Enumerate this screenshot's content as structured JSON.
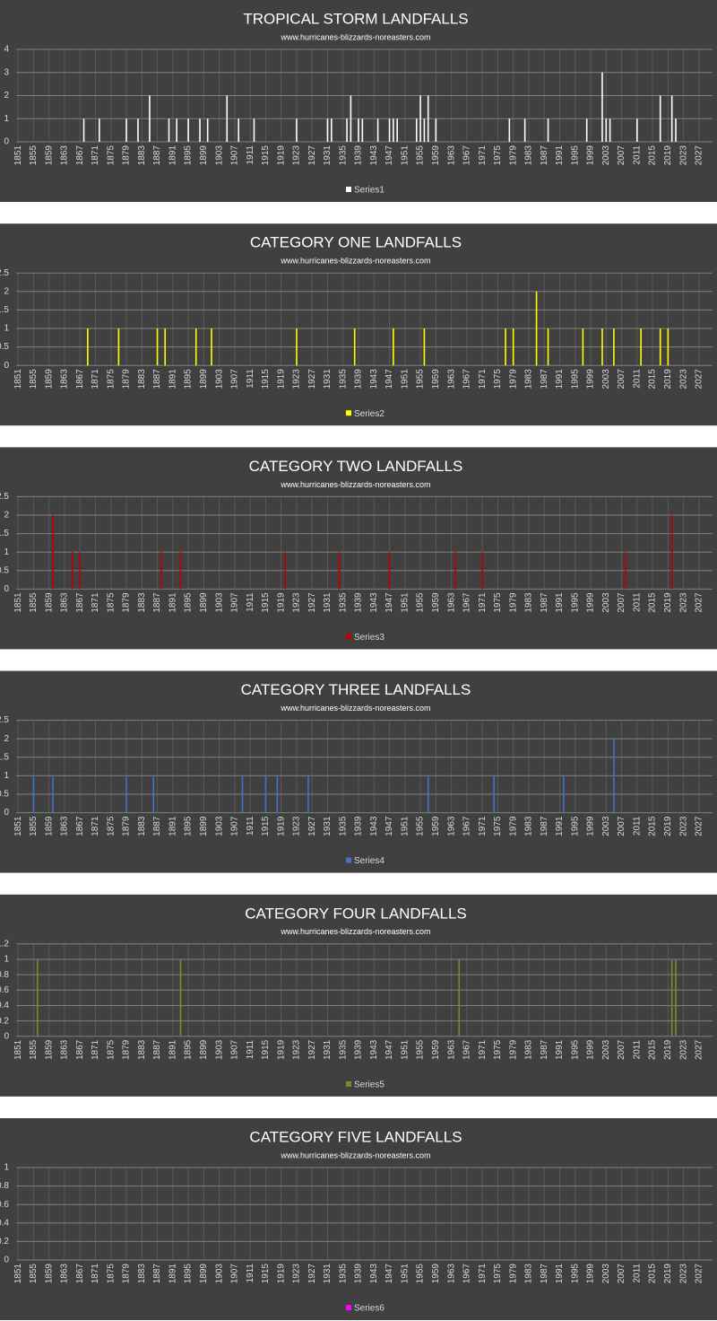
{
  "chart_data": [
    {
      "type": "bar",
      "title": "TROPICAL STORM LANDFALLS",
      "subtitle": "www.hurricanes-blizzards-noreasters.com",
      "x": [
        1868,
        1872,
        1879,
        1882,
        1885,
        1890,
        1892,
        1895,
        1898,
        1900,
        1905,
        1908,
        1912,
        1923,
        1931,
        1932,
        1936,
        1937,
        1939,
        1940,
        1944,
        1947,
        1948,
        1949,
        1954,
        1955,
        1956,
        1957,
        1959,
        1978,
        1982,
        1988,
        1998,
        2002,
        2003,
        2004,
        2011,
        2017,
        2020,
        2021
      ],
      "series": [
        {
          "name": "Series1",
          "color": "#ffffff",
          "values": [
            1,
            1,
            1,
            1,
            2,
            1,
            1,
            1,
            1,
            1,
            2,
            1,
            1,
            1,
            1,
            1,
            1,
            2,
            1,
            1,
            1,
            1,
            1,
            1,
            1,
            2,
            1,
            2,
            1,
            1,
            1,
            1,
            1,
            3,
            1,
            1,
            1,
            2,
            2,
            1
          ]
        }
      ],
      "xlim": [
        1850.5,
        2030.5
      ],
      "xticks": [
        1851,
        1855,
        1859,
        1863,
        1867,
        1871,
        1875,
        1879,
        1883,
        1887,
        1891,
        1895,
        1899,
        1903,
        1907,
        1911,
        1915,
        1919,
        1923,
        1927,
        1931,
        1935,
        1939,
        1943,
        1947,
        1951,
        1955,
        1959,
        1963,
        1967,
        1971,
        1975,
        1979,
        1983,
        1987,
        1991,
        1995,
        1999,
        2003,
        2007,
        2011,
        2015,
        2019,
        2023,
        2027
      ],
      "ylim": [
        0,
        4
      ],
      "yticks": [
        0,
        1,
        2,
        3,
        4
      ],
      "grid": true
    },
    {
      "type": "bar",
      "title": "CATEGORY ONE LANDFALLS",
      "subtitle": "www.hurricanes-blizzards-noreasters.com",
      "x": [
        1869,
        1877,
        1887,
        1889,
        1897,
        1901,
        1923,
        1938,
        1948,
        1956,
        1977,
        1979,
        1985,
        1988,
        1997,
        2002,
        2005,
        2012,
        2017,
        2019
      ],
      "series": [
        {
          "name": "Series2",
          "color": "#ffff00",
          "values": [
            1,
            1,
            1,
            1,
            1,
            1,
            1,
            1,
            1,
            1,
            1,
            1,
            2,
            1,
            1,
            1,
            1,
            1,
            1,
            1
          ]
        }
      ],
      "xlim": [
        1850.5,
        2030.5
      ],
      "xticks": [
        1851,
        1855,
        1859,
        1863,
        1867,
        1871,
        1875,
        1879,
        1883,
        1887,
        1891,
        1895,
        1899,
        1903,
        1907,
        1911,
        1915,
        1919,
        1923,
        1927,
        1931,
        1935,
        1939,
        1943,
        1947,
        1951,
        1955,
        1959,
        1963,
        1967,
        1971,
        1975,
        1979,
        1983,
        1987,
        1991,
        1995,
        1999,
        2003,
        2007,
        2011,
        2015,
        2019,
        2023,
        2027
      ],
      "ylim": [
        0,
        2.5
      ],
      "yticks": [
        0,
        0.5,
        1,
        1.5,
        2,
        2.5
      ],
      "grid": true
    },
    {
      "type": "bar",
      "title": "CATEGORY TWO LANDFALLS",
      "subtitle": "www.hurricanes-blizzards-noreasters.com",
      "x": [
        1860,
        1865,
        1867,
        1888,
        1893,
        1920,
        1934,
        1947,
        1964,
        1971,
        2008,
        2020
      ],
      "series": [
        {
          "name": "Series3",
          "color": "#c00000",
          "values": [
            2,
            1,
            1,
            1,
            1,
            1,
            1,
            1,
            1,
            1,
            1,
            2
          ]
        }
      ],
      "xlim": [
        1850.5,
        2030.5
      ],
      "xticks": [
        1851,
        1855,
        1859,
        1863,
        1867,
        1871,
        1875,
        1879,
        1883,
        1887,
        1891,
        1895,
        1899,
        1903,
        1907,
        1911,
        1915,
        1919,
        1923,
        1927,
        1931,
        1935,
        1939,
        1943,
        1947,
        1951,
        1955,
        1959,
        1963,
        1967,
        1971,
        1975,
        1979,
        1983,
        1987,
        1991,
        1995,
        1999,
        2003,
        2007,
        2011,
        2015,
        2019,
        2023,
        2027
      ],
      "ylim": [
        0,
        2.5
      ],
      "yticks": [
        0,
        0.5,
        1,
        1.5,
        2,
        2.5
      ],
      "grid": true
    },
    {
      "type": "bar",
      "title": "CATEGORY THREE LANDFALLS",
      "subtitle": "www.hurricanes-blizzards-noreasters.com",
      "x": [
        1855,
        1860,
        1879,
        1886,
        1909,
        1915,
        1918,
        1926,
        1957,
        1974,
        1992,
        2005
      ],
      "series": [
        {
          "name": "Series4",
          "color": "#4472c4",
          "values": [
            1,
            1,
            1,
            1,
            1,
            1,
            1,
            1,
            1,
            1,
            1,
            2
          ]
        }
      ],
      "xlim": [
        1850.5,
        2030.5
      ],
      "xticks": [
        1851,
        1855,
        1859,
        1863,
        1867,
        1871,
        1875,
        1879,
        1883,
        1887,
        1891,
        1895,
        1899,
        1903,
        1907,
        1911,
        1915,
        1919,
        1923,
        1927,
        1931,
        1935,
        1939,
        1943,
        1947,
        1951,
        1955,
        1959,
        1963,
        1967,
        1971,
        1975,
        1979,
        1983,
        1987,
        1991,
        1995,
        1999,
        2003,
        2007,
        2011,
        2015,
        2019,
        2023,
        2027
      ],
      "ylim": [
        0,
        2.5
      ],
      "yticks": [
        0,
        0.5,
        1,
        1.5,
        2,
        2.5
      ],
      "grid": true
    },
    {
      "type": "bar",
      "title": "CATEGORY FOUR LANDFALLS",
      "subtitle": "www.hurricanes-blizzards-noreasters.com",
      "x": [
        1856,
        1893,
        1965,
        2020,
        2021
      ],
      "series": [
        {
          "name": "Series5",
          "color": "#70902e",
          "values": [
            1,
            1,
            1,
            1,
            1
          ]
        }
      ],
      "xlim": [
        1850.5,
        2030.5
      ],
      "xticks": [
        1851,
        1855,
        1859,
        1863,
        1867,
        1871,
        1875,
        1879,
        1883,
        1887,
        1891,
        1895,
        1899,
        1903,
        1907,
        1911,
        1915,
        1919,
        1923,
        1927,
        1931,
        1935,
        1939,
        1943,
        1947,
        1951,
        1955,
        1959,
        1963,
        1967,
        1971,
        1975,
        1979,
        1983,
        1987,
        1991,
        1995,
        1999,
        2003,
        2007,
        2011,
        2015,
        2019,
        2023,
        2027
      ],
      "ylim": [
        0,
        1.2
      ],
      "yticks": [
        0,
        0.2,
        0.4,
        0.6,
        0.8,
        1,
        1.2
      ],
      "grid": true
    },
    {
      "type": "bar",
      "title": "CATEGORY FIVE LANDFALLS",
      "subtitle": "www.hurricanes-blizzards-noreasters.com",
      "x": [],
      "series": [
        {
          "name": "Series6",
          "color": "#ff00ff",
          "values": []
        }
      ],
      "xlim": [
        1850.5,
        2030.5
      ],
      "xticks": [
        1851,
        1855,
        1859,
        1863,
        1867,
        1871,
        1875,
        1879,
        1883,
        1887,
        1891,
        1895,
        1899,
        1903,
        1907,
        1911,
        1915,
        1919,
        1923,
        1927,
        1931,
        1935,
        1939,
        1943,
        1947,
        1951,
        1955,
        1959,
        1963,
        1967,
        1971,
        1975,
        1979,
        1983,
        1987,
        1991,
        1995,
        1999,
        2003,
        2007,
        2011,
        2015,
        2019,
        2023,
        2027
      ],
      "ylim": [
        0,
        1
      ],
      "yticks": [
        0,
        0.2,
        0.4,
        0.6,
        0.8,
        1
      ],
      "grid": true
    }
  ]
}
